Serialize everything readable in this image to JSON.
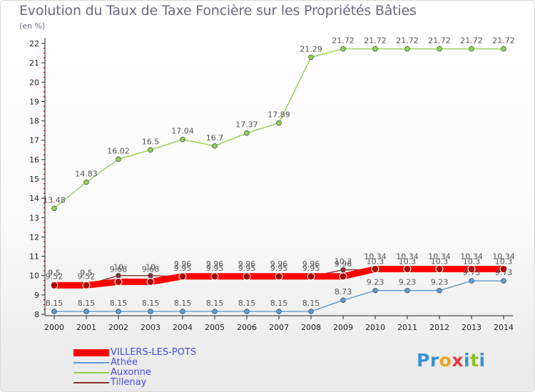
{
  "title": "Evolution du Taux de Taxe Foncière sur les Propriétés Bâties",
  "unit": "(en %)",
  "logo": {
    "text": "Proxiti",
    "letters": [
      "P",
      "r",
      "o",
      "x",
      "i",
      "t",
      "i"
    ],
    "colors": [
      "#3a8fd0",
      "#3a8fd0",
      "#f0a020",
      "#e04040",
      "#3a8fd0",
      "#90c020",
      "#3a8fd0"
    ]
  },
  "chart_data": {
    "type": "line",
    "title": "Evolution du Taux de Taxe Foncière sur les Propriétés Bâties",
    "ylabel": "(en %)",
    "xlabel": "",
    "ylim": [
      8,
      22
    ],
    "yticks": [
      8,
      9,
      10,
      11,
      12,
      13,
      14,
      15,
      16,
      17,
      18,
      19,
      20,
      21,
      22
    ],
    "x": [
      "2000",
      "2001",
      "2002",
      "2003",
      "2004",
      "2005",
      "2006",
      "2007",
      "2008",
      "2009",
      "2010",
      "2011",
      "2012",
      "2013",
      "2014"
    ],
    "series": [
      {
        "name": "VILLERS-LES-POTS",
        "color": "#ff0000",
        "values": [
          9.5,
          9.5,
          9.68,
          9.68,
          9.96,
          9.96,
          9.96,
          9.96,
          9.96,
          9.96,
          10.34,
          10.34,
          10.34,
          10.34,
          10.34
        ],
        "labels": [
          "9.5",
          "9.5",
          "9.68",
          "9.68",
          "9.96",
          "9.96",
          "9.96",
          "9.96",
          "9.96",
          "9.96",
          "10.34",
          "10.34",
          "10.34",
          "10.34",
          "10.34"
        ]
      },
      {
        "name": "Athée",
        "color": "#5b9bd5",
        "values": [
          8.15,
          8.15,
          8.15,
          8.15,
          8.15,
          8.15,
          8.15,
          8.15,
          8.15,
          8.73,
          9.23,
          9.23,
          9.23,
          9.73,
          9.73
        ],
        "labels": [
          "8.15",
          "8.15",
          "8.15",
          "8.15",
          "8.15",
          "8.15",
          "8.15",
          "8.15",
          "8.15",
          "8.73",
          "9.23",
          "9.23",
          "9.23",
          "9.73",
          "9.73"
        ]
      },
      {
        "name": "Auxonne",
        "color": "#8fd14f",
        "values": [
          13.48,
          14.83,
          16.02,
          16.5,
          17.04,
          16.7,
          17.37,
          17.89,
          21.29,
          21.72,
          21.72,
          21.72,
          21.72,
          21.72,
          21.72
        ],
        "labels": [
          "13.48",
          "14.83",
          "16.02",
          "16.5",
          "17.04",
          "16.7",
          "17.37",
          "17.89",
          "21.29",
          "21.72",
          "21.72",
          "21.72",
          "21.72",
          "21.72",
          "21.72"
        ]
      },
      {
        "name": "Tillenay",
        "color": "#8b2e2e",
        "values": [
          9.52,
          9.52,
          10,
          10,
          9.95,
          9.95,
          9.95,
          9.95,
          9.95,
          10.3,
          10.3,
          10.3,
          10.3,
          10.3,
          10.3
        ],
        "labels": [
          "9.52",
          "9.52",
          "10",
          "10",
          "9.95",
          "9.95",
          "9.95",
          "9.95",
          "9.95",
          "10.3",
          "10.3",
          "10.3",
          "10.3",
          "10.3",
          "10.3"
        ]
      }
    ],
    "legend": [
      "VILLERS-LES-POTS",
      "Athée",
      "Auxonne",
      "Tillenay"
    ],
    "legend_position": "bottom-left",
    "grid": false
  }
}
